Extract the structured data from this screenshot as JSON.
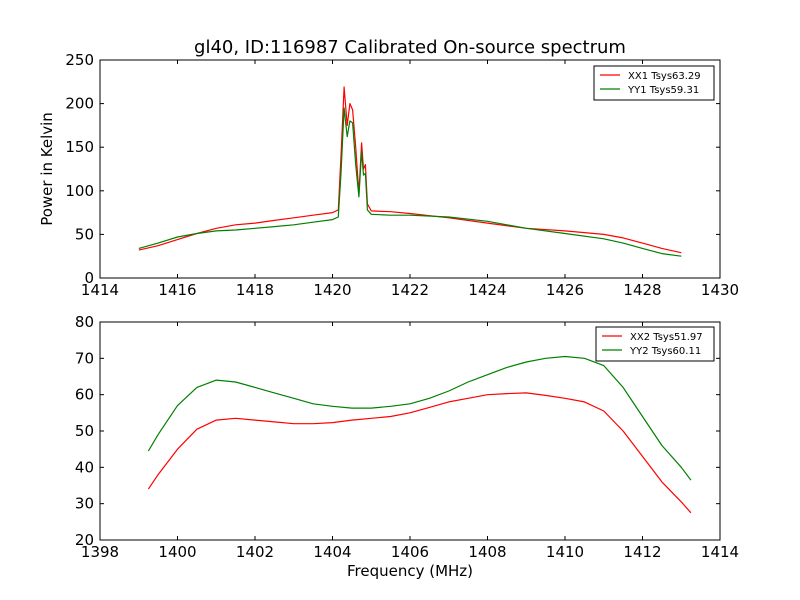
{
  "title": "gl40, ID:116987 Calibrated On-source spectrum",
  "chart_data": [
    {
      "type": "line",
      "ylabel": "Power in Kelvin",
      "xlabel": "",
      "xlim": [
        1414,
        1430
      ],
      "ylim": [
        0,
        250
      ],
      "xticks": [
        "1414",
        "1416",
        "1418",
        "1420",
        "1422",
        "1424",
        "1426",
        "1428",
        "1430"
      ],
      "yticks": [
        "0",
        "50",
        "100",
        "150",
        "200",
        "250"
      ],
      "legend_position": "top-right",
      "series": [
        {
          "name": "XX1 Tsys63.29",
          "color": "#ff0000",
          "points": [
            [
              1415.0,
              32
            ],
            [
              1415.5,
              37
            ],
            [
              1416.0,
              44
            ],
            [
              1416.5,
              51
            ],
            [
              1417.0,
              57
            ],
            [
              1417.5,
              61
            ],
            [
              1418.0,
              63
            ],
            [
              1418.5,
              66
            ],
            [
              1419.0,
              69
            ],
            [
              1419.5,
              72
            ],
            [
              1420.0,
              75
            ],
            [
              1420.15,
              78
            ],
            [
              1420.22,
              140
            ],
            [
              1420.3,
              219
            ],
            [
              1420.38,
              175
            ],
            [
              1420.45,
              200
            ],
            [
              1420.52,
              193
            ],
            [
              1420.6,
              150
            ],
            [
              1420.68,
              97
            ],
            [
              1420.75,
              155
            ],
            [
              1420.8,
              125
            ],
            [
              1420.85,
              130
            ],
            [
              1420.9,
              85
            ],
            [
              1421.0,
              77
            ],
            [
              1421.5,
              76
            ],
            [
              1422.0,
              74
            ],
            [
              1423.0,
              69
            ],
            [
              1424.0,
              63
            ],
            [
              1425.0,
              57
            ],
            [
              1426.0,
              54
            ],
            [
              1427.0,
              50
            ],
            [
              1427.5,
              46
            ],
            [
              1428.0,
              40
            ],
            [
              1428.5,
              34
            ],
            [
              1429.0,
              29
            ]
          ]
        },
        {
          "name": "YY1 Tsys59.31",
          "color": "#008000",
          "points": [
            [
              1415.0,
              34
            ],
            [
              1415.5,
              40
            ],
            [
              1416.0,
              47
            ],
            [
              1416.5,
              51
            ],
            [
              1417.0,
              54
            ],
            [
              1417.5,
              55
            ],
            [
              1418.0,
              57
            ],
            [
              1418.5,
              59
            ],
            [
              1419.0,
              61
            ],
            [
              1419.5,
              64
            ],
            [
              1420.0,
              67
            ],
            [
              1420.15,
              70
            ],
            [
              1420.22,
              120
            ],
            [
              1420.3,
              195
            ],
            [
              1420.38,
              162
            ],
            [
              1420.45,
              180
            ],
            [
              1420.52,
              178
            ],
            [
              1420.6,
              130
            ],
            [
              1420.68,
              93
            ],
            [
              1420.75,
              145
            ],
            [
              1420.8,
              118
            ],
            [
              1420.85,
              120
            ],
            [
              1420.9,
              78
            ],
            [
              1421.0,
              73
            ],
            [
              1421.5,
              72
            ],
            [
              1422.0,
              72
            ],
            [
              1423.0,
              70
            ],
            [
              1424.0,
              65
            ],
            [
              1425.0,
              57
            ],
            [
              1426.0,
              51
            ],
            [
              1427.0,
              45
            ],
            [
              1427.5,
              40
            ],
            [
              1428.0,
              34
            ],
            [
              1428.5,
              28
            ],
            [
              1429.0,
              25
            ]
          ]
        }
      ]
    },
    {
      "type": "line",
      "ylabel": "",
      "xlabel": "Frequency (MHz)",
      "xlim": [
        1398,
        1414
      ],
      "ylim": [
        20,
        80
      ],
      "xticks": [
        "1398",
        "1400",
        "1402",
        "1404",
        "1406",
        "1408",
        "1410",
        "1412",
        "1414"
      ],
      "yticks": [
        "20",
        "30",
        "40",
        "50",
        "60",
        "70",
        "80"
      ],
      "legend_position": "top-right",
      "series": [
        {
          "name": "XX2 Tsys51.97",
          "color": "#ff0000",
          "points": [
            [
              1399.25,
              34
            ],
            [
              1399.5,
              38
            ],
            [
              1400.0,
              45
            ],
            [
              1400.5,
              50.5
            ],
            [
              1401.0,
              53
            ],
            [
              1401.5,
              53.5
            ],
            [
              1402.0,
              53
            ],
            [
              1402.5,
              52.5
            ],
            [
              1403.0,
              52
            ],
            [
              1403.5,
              52
            ],
            [
              1404.0,
              52.3
            ],
            [
              1404.5,
              53
            ],
            [
              1405.0,
              53.5
            ],
            [
              1405.5,
              54
            ],
            [
              1406.0,
              55
            ],
            [
              1406.5,
              56.5
            ],
            [
              1407.0,
              58
            ],
            [
              1407.5,
              59
            ],
            [
              1408.0,
              60
            ],
            [
              1408.5,
              60.3
            ],
            [
              1409.0,
              60.5
            ],
            [
              1409.5,
              59.8
            ],
            [
              1410.0,
              59
            ],
            [
              1410.5,
              58
            ],
            [
              1411.0,
              55.5
            ],
            [
              1411.5,
              50
            ],
            [
              1412.0,
              43
            ],
            [
              1412.5,
              36
            ],
            [
              1413.0,
              30.5
            ],
            [
              1413.25,
              27.5
            ]
          ]
        },
        {
          "name": "YY2 Tsys60.11",
          "color": "#008000",
          "points": [
            [
              1399.25,
              44.5
            ],
            [
              1399.5,
              49
            ],
            [
              1400.0,
              57
            ],
            [
              1400.5,
              62
            ],
            [
              1401.0,
              64
            ],
            [
              1401.5,
              63.5
            ],
            [
              1402.0,
              62
            ],
            [
              1402.5,
              60.5
            ],
            [
              1403.0,
              59
            ],
            [
              1403.5,
              57.5
            ],
            [
              1404.0,
              56.8
            ],
            [
              1404.5,
              56.3
            ],
            [
              1405.0,
              56.3
            ],
            [
              1405.5,
              56.8
            ],
            [
              1406.0,
              57.5
            ],
            [
              1406.5,
              59
            ],
            [
              1407.0,
              61
            ],
            [
              1407.5,
              63.5
            ],
            [
              1408.0,
              65.5
            ],
            [
              1408.5,
              67.5
            ],
            [
              1409.0,
              69
            ],
            [
              1409.5,
              70
            ],
            [
              1410.0,
              70.5
            ],
            [
              1410.5,
              70
            ],
            [
              1411.0,
              68
            ],
            [
              1411.5,
              62
            ],
            [
              1412.0,
              54
            ],
            [
              1412.5,
              46
            ],
            [
              1413.0,
              40
            ],
            [
              1413.25,
              36.5
            ]
          ]
        }
      ]
    }
  ]
}
